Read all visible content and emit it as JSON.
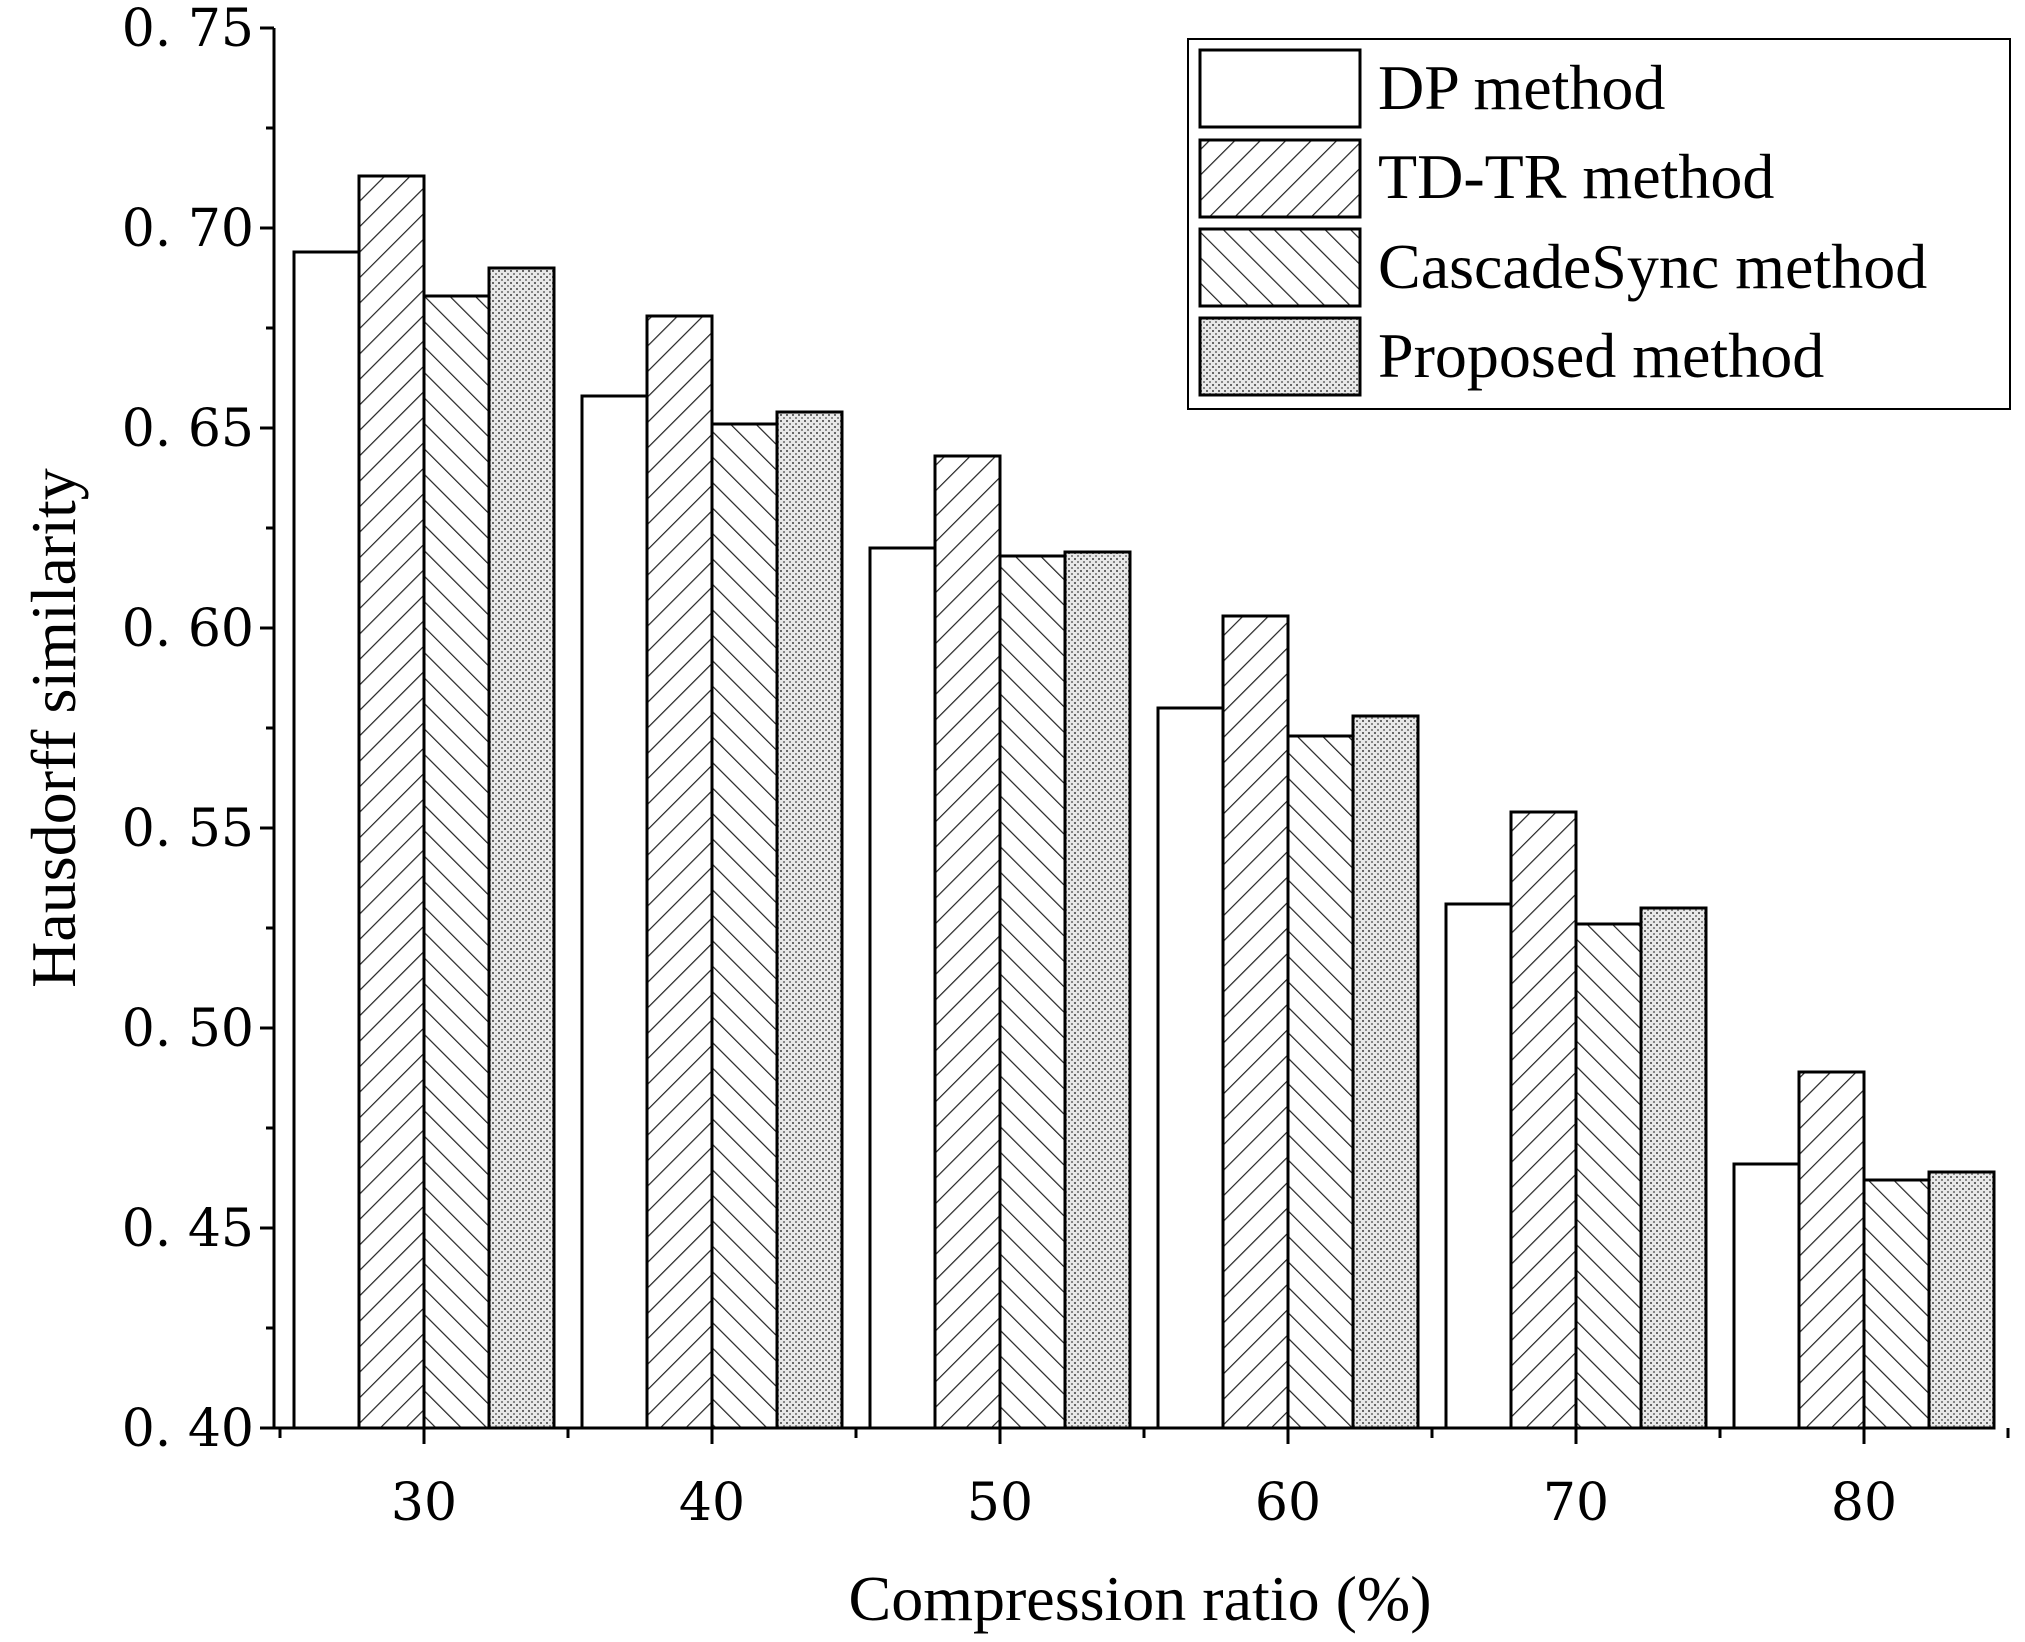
{
  "chart_data": {
    "type": "bar",
    "title": "",
    "xlabel": "Compression ratio (%)",
    "ylabel": "Hausdorff similarity",
    "categories": [
      "30",
      "40",
      "50",
      "60",
      "70",
      "80"
    ],
    "ylim": [
      0.4,
      0.75
    ],
    "yticks": [
      "0. 40",
      "0. 45",
      "0. 50",
      "0. 55",
      "0. 60",
      "0. 65",
      "0. 70",
      "0. 75"
    ],
    "grid": false,
    "legend_position": "top-right",
    "series": [
      {
        "name": "DP method",
        "pattern": "none",
        "values": [
          0.694,
          0.658,
          0.62,
          0.58,
          0.531,
          0.466
        ]
      },
      {
        "name": "TD-TR method",
        "pattern": "forward-hatch",
        "values": [
          0.713,
          0.678,
          0.643,
          0.603,
          0.554,
          0.489
        ]
      },
      {
        "name": "CascadeSync method",
        "pattern": "back-hatch",
        "values": [
          0.683,
          0.651,
          0.618,
          0.573,
          0.526,
          0.462
        ]
      },
      {
        "name": "Proposed method",
        "pattern": "dots",
        "values": [
          0.69,
          0.654,
          0.619,
          0.578,
          0.53,
          0.464
        ]
      }
    ]
  }
}
